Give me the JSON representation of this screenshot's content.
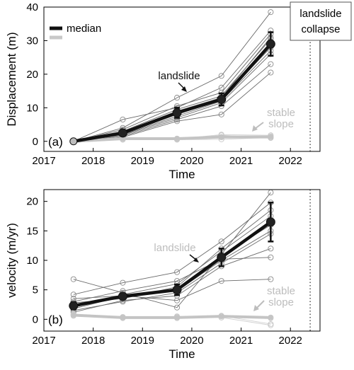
{
  "chart_data": [
    {
      "type": "line",
      "panel_label": "(a)",
      "xlabel": "Time",
      "ylabel": "Displacement (m)",
      "xlim": [
        2017,
        2022.6
      ],
      "ylim": [
        -3,
        40
      ],
      "xticks": [
        "2017",
        "2018",
        "2019",
        "2020",
        "2021",
        "2022"
      ],
      "yticks": [
        "0",
        "10",
        "20",
        "30",
        "40"
      ],
      "x": [
        2017.6,
        2018.6,
        2019.7,
        2020.6,
        2021.6
      ],
      "grid": false,
      "legend": {
        "position": "top-left",
        "items": [
          {
            "label": "median",
            "color": "#000000"
          },
          {
            "label": "",
            "color": "#c8c8c8"
          }
        ]
      },
      "series": [
        {
          "values": [
            0,
            2.5,
            8.5,
            12.5,
            29
          ]
        },
        {
          "values": [
            0,
            0.8,
            0.8,
            1.3,
            1.3
          ]
        },
        {
          "values": [
            0,
            4.0,
            13.0,
            19.5,
            38.5
          ]
        },
        {
          "values": [
            0,
            6.5,
            10.0,
            16.0,
            33.0
          ]
        },
        {
          "values": [
            0,
            3.5,
            10.5,
            14.5,
            32.0
          ]
        },
        {
          "values": [
            0,
            3.0,
            9.5,
            13.5,
            30.5
          ]
        },
        {
          "values": [
            0,
            2.8,
            9.0,
            13.0,
            31.0
          ]
        },
        {
          "values": [
            0,
            2.2,
            8.0,
            12.5,
            28.0
          ]
        },
        {
          "values": [
            0,
            2.0,
            7.5,
            12.0,
            27.0
          ]
        },
        {
          "values": [
            0,
            1.8,
            7.0,
            11.5,
            26.0
          ]
        },
        {
          "values": [
            0,
            1.5,
            6.5,
            10.5,
            23.0
          ]
        },
        {
          "values": [
            0,
            1.2,
            6.0,
            8.0,
            20.5
          ]
        },
        {
          "values": [
            0,
            2.6,
            8.8,
            12.8,
            29.5
          ]
        },
        {
          "values": [
            0,
            1.0,
            0.8,
            1.2,
            1.5
          ]
        },
        {
          "values": [
            0,
            0.6,
            0.6,
            1.8,
            1.0
          ]
        },
        {
          "values": [
            0,
            0.9,
            0.7,
            2.0,
            1.8
          ]
        },
        {
          "values": [
            0,
            0.5,
            0.5,
            0.6,
            1.1
          ]
        }
      ],
      "median_landslide": {
        "values": [
          0,
          2.5,
          8.5,
          12.5,
          29
        ],
        "err": [
          0,
          0.8,
          1.5,
          1.8,
          3.5
        ]
      },
      "median_stable": {
        "values": [
          0,
          0.8,
          0.8,
          1.3,
          1.3
        ]
      },
      "annotations": {
        "landslide": "landslide",
        "stable_slope_1": "stable",
        "stable_slope_2": "slope",
        "collapse_1": "landslide",
        "collapse_2": "collapse",
        "collapse_x": 2022.4
      }
    },
    {
      "type": "line",
      "panel_label": "(b)",
      "xlabel": "Time",
      "ylabel": "velocity (m/yr)",
      "xlim": [
        2017,
        2022.6
      ],
      "ylim": [
        -2,
        22
      ],
      "xticks": [
        "2017",
        "2018",
        "2019",
        "2020",
        "2021",
        "2022"
      ],
      "yticks": [
        "0",
        "5",
        "10",
        "15",
        "20"
      ],
      "x": [
        2017.6,
        2018.6,
        2019.7,
        2020.6,
        2021.6
      ],
      "grid": false,
      "series": [
        {
          "values": [
            2.3,
            3.8,
            5.0,
            10.5,
            16.5
          ]
        },
        {
          "values": [
            6.8,
            4.5,
            2.0,
            11.0,
            21.5
          ]
        },
        {
          "values": [
            4.2,
            6.2,
            8.0,
            13.2,
            19.8
          ]
        },
        {
          "values": [
            3.5,
            4.0,
            3.2,
            6.5,
            6.8
          ]
        },
        {
          "values": [
            2.8,
            3.5,
            5.5,
            12.0,
            18.5
          ]
        },
        {
          "values": [
            2.0,
            4.2,
            6.0,
            11.5,
            17.5
          ]
        },
        {
          "values": [
            1.8,
            3.9,
            4.8,
            10.0,
            15.0
          ]
        },
        {
          "values": [
            1.5,
            3.0,
            4.5,
            9.5,
            14.5
          ]
        },
        {
          "values": [
            2.5,
            3.6,
            5.2,
            10.8,
            16.0
          ]
        },
        {
          "values": [
            1.2,
            3.2,
            4.0,
            9.0,
            12.0
          ]
        },
        {
          "values": [
            3.0,
            4.8,
            6.5,
            10.2,
            10.5
          ]
        },
        {
          "values": [
            0.8,
            0.3,
            0.3,
            0.5,
            0.2
          ]
        },
        {
          "values": [
            0.7,
            0.4,
            0.2,
            0.6,
            -0.8
          ]
        },
        {
          "values": [
            0.9,
            0.2,
            0.5,
            0.3,
            -1.0
          ]
        },
        {
          "values": [
            0.6,
            0.3,
            0.4,
            0.5,
            0.3
          ]
        }
      ],
      "median_landslide": {
        "values": [
          2.3,
          3.9,
          5.0,
          10.5,
          16.5
        ],
        "err": [
          0.6,
          0.5,
          0.9,
          1.5,
          3.3
        ]
      },
      "median_stable": {
        "values": [
          0.7,
          0.3,
          0.3,
          0.5,
          0.3
        ]
      },
      "annotations": {
        "landslide": "landslide",
        "stable_slope_1": "stable",
        "stable_slope_2": "slope",
        "collapse_x": 2022.4
      }
    }
  ]
}
